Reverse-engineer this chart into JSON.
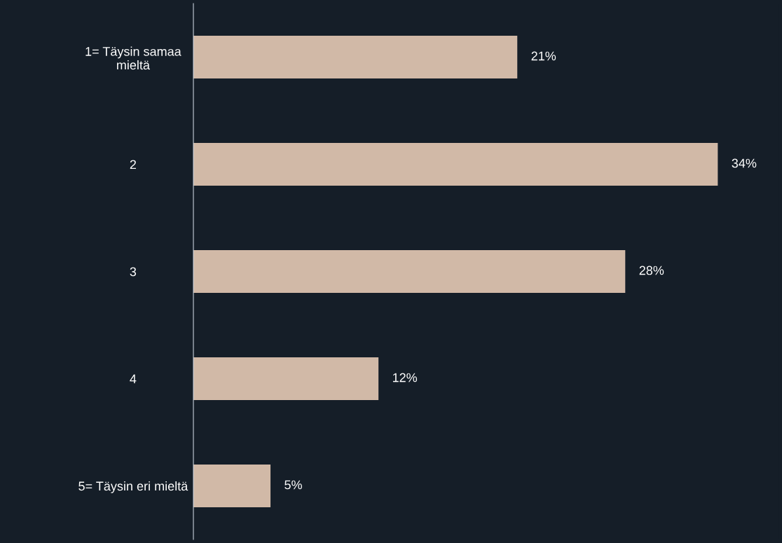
{
  "chart_data": {
    "type": "bar",
    "orientation": "horizontal",
    "categories": [
      "1= Täysin samaa\nmieltä",
      "2",
      "3",
      "4",
      "5= Täysin eri mieltä"
    ],
    "values": [
      21,
      34,
      28,
      12,
      5
    ],
    "value_labels": [
      "21%",
      "34%",
      "28%",
      "12%",
      "5%"
    ],
    "color": "#d1b9a7",
    "grid": false,
    "legend": false
  }
}
